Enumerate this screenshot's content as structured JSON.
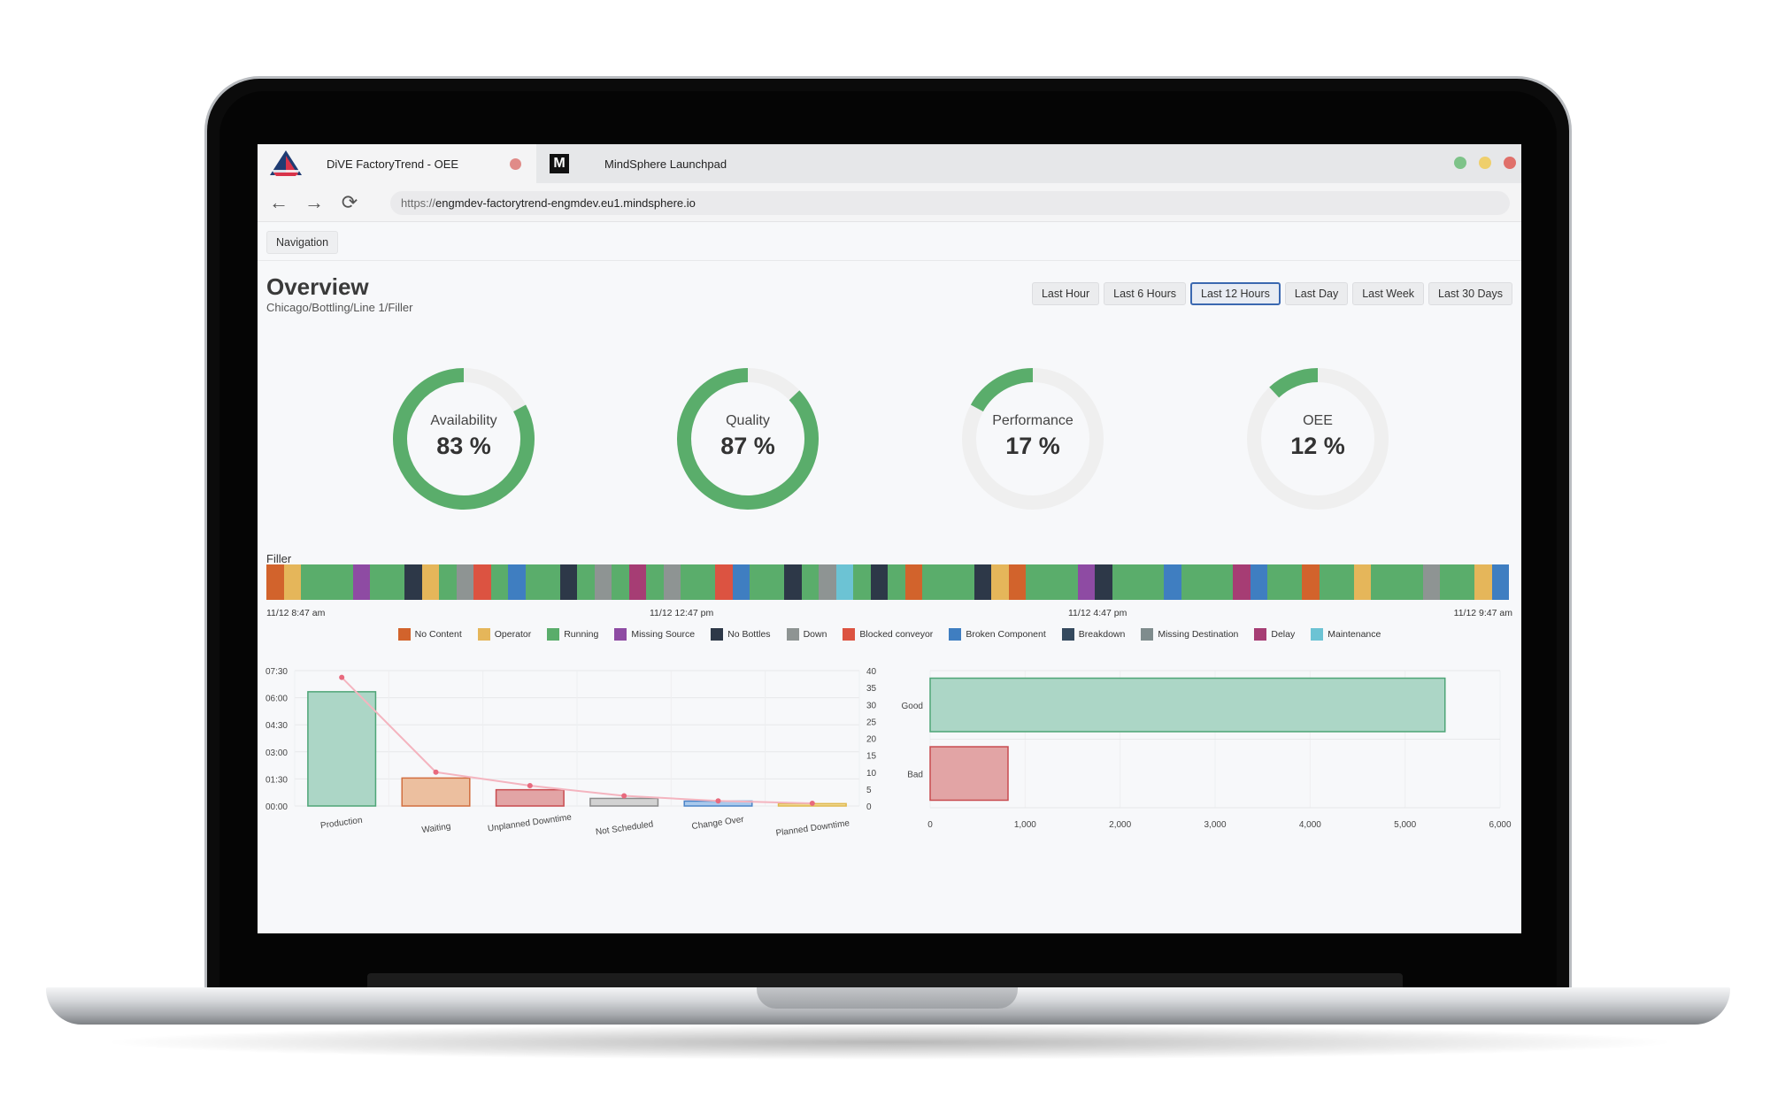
{
  "browser": {
    "tabs": [
      {
        "title": "DiVE FactoryTrend - OEE",
        "active": true
      },
      {
        "title": "MindSphere Launchpad",
        "active": false,
        "icon_text": "M"
      }
    ],
    "url_scheme": "https://",
    "url_host": "engmdev-factorytrend-engmdev.eu1.mindsphere.io"
  },
  "app": {
    "navigation_label": "Navigation",
    "title": "Overview",
    "subtitle": "Chicago/Bottling/Line 1/Filler",
    "ranges": [
      {
        "label": "Last Hour",
        "active": false
      },
      {
        "label": "Last 6 Hours",
        "active": false
      },
      {
        "label": "Last 12 Hours",
        "active": true
      },
      {
        "label": "Last Day",
        "active": false
      },
      {
        "label": "Last Week",
        "active": false
      },
      {
        "label": "Last 30 Days",
        "active": false
      }
    ]
  },
  "gauges": [
    {
      "label": "Availability",
      "value": "83 %",
      "fraction": 0.83
    },
    {
      "label": "Quality",
      "value": "87 %",
      "fraction": 0.87
    },
    {
      "label": "Performance",
      "value": "17 %",
      "fraction": 0.17
    },
    {
      "label": "OEE",
      "value": "12 %",
      "fraction": 0.12
    }
  ],
  "colors": {
    "gauge_fill": "#5aad6b",
    "gauge_track": "#efefef",
    "good_bar": "#acd6c6",
    "good_border": "#4ea577",
    "bad_bar": "#e2a4a5",
    "bad_border": "#c84b4f",
    "pareto_line": "#f4b4bf",
    "pareto_point": "#e86a7e"
  },
  "timeline": {
    "label": "Filler",
    "start_label": "11/12 8:47 am",
    "tick_labels": [
      "11/12 12:47 pm",
      "11/12 4:47 pm"
    ],
    "end_label": "11/12 9:47 am",
    "segments": [
      [
        "No Content",
        2
      ],
      [
        "Operator",
        2
      ],
      [
        "Running",
        6
      ],
      [
        "Missing Source",
        2
      ],
      [
        "Running",
        4
      ],
      [
        "No Bottles",
        2
      ],
      [
        "Operator",
        2
      ],
      [
        "Running",
        2
      ],
      [
        "Down",
        2
      ],
      [
        "Blocked conveyor",
        2
      ],
      [
        "Running",
        2
      ],
      [
        "Broken Component",
        2
      ],
      [
        "Running",
        4
      ],
      [
        "No Bottles",
        2
      ],
      [
        "Running",
        2
      ],
      [
        "Down",
        2
      ],
      [
        "Running",
        2
      ],
      [
        "Delay",
        2
      ],
      [
        "Running",
        2
      ],
      [
        "Down",
        2
      ],
      [
        "Running",
        4
      ],
      [
        "Blocked conveyor",
        2
      ],
      [
        "Broken Component",
        2
      ],
      [
        "Running",
        4
      ],
      [
        "No Bottles",
        2
      ],
      [
        "Running",
        2
      ],
      [
        "Down",
        2
      ],
      [
        "Maintenance",
        2
      ],
      [
        "Running",
        2
      ],
      [
        "No Bottles",
        2
      ],
      [
        "Running",
        2
      ],
      [
        "No Content",
        2
      ],
      [
        "Running",
        6
      ],
      [
        "No Bottles",
        2
      ],
      [
        "Operator",
        2
      ],
      [
        "No Content",
        2
      ],
      [
        "Running",
        6
      ],
      [
        "Missing Source",
        2
      ],
      [
        "No Bottles",
        2
      ],
      [
        "Running",
        6
      ],
      [
        "Broken Component",
        2
      ],
      [
        "Running",
        6
      ],
      [
        "Delay",
        2
      ],
      [
        "Broken Component",
        2
      ],
      [
        "Running",
        4
      ],
      [
        "No Content",
        2
      ],
      [
        "Running",
        4
      ],
      [
        "Operator",
        2
      ],
      [
        "Running",
        6
      ],
      [
        "Down",
        2
      ],
      [
        "Running",
        4
      ],
      [
        "Operator",
        2
      ],
      [
        "Broken Component",
        2
      ]
    ]
  },
  "legend": [
    {
      "name": "No Content",
      "color": "#d2632c"
    },
    {
      "name": "Operator",
      "color": "#e5b65a"
    },
    {
      "name": "Running",
      "color": "#5aad6b"
    },
    {
      "name": "Missing Source",
      "color": "#8e4ba3"
    },
    {
      "name": "No Bottles",
      "color": "#2d3848"
    },
    {
      "name": "Down",
      "color": "#8e9493"
    },
    {
      "name": "Blocked conveyor",
      "color": "#dc5341"
    },
    {
      "name": "Broken Component",
      "color": "#3f7ec1"
    },
    {
      "name": "Breakdown",
      "color": "#34495e"
    },
    {
      "name": "Missing Destination",
      "color": "#7f8c8d"
    },
    {
      "name": "Delay",
      "color": "#a63d74"
    },
    {
      "name": "Maintenance",
      "color": "#6cc3d4"
    }
  ],
  "chart_data": [
    {
      "type": "bar",
      "categories": [
        "Production",
        "Waiting",
        "Unplanned Downtime",
        "Not Scheduled",
        "Change Over",
        "Planned Downtime"
      ],
      "series": [
        {
          "values_hours": [
            6.33,
            1.55,
            0.9,
            0.42,
            0.27,
            0.13
          ],
          "kind": "bar"
        },
        {
          "values": [
            38,
            10,
            6,
            3,
            1.5,
            0.8
          ],
          "kind": "line",
          "axis": "right"
        }
      ],
      "bar_colors": [
        "#acd6c6",
        "#ecbf9f",
        "#e2a4a5",
        "#d2d2d2",
        "#a9c9ec",
        "#f1dc9a"
      ],
      "bar_borders": [
        "#4ea577",
        "#d26f3f",
        "#c84b4f",
        "#8b8b8b",
        "#4b84c8",
        "#e0b84d"
      ],
      "left_ticks": [
        "07:30",
        "06:00",
        "04:30",
        "03:00",
        "01:30",
        "00:00"
      ],
      "left_tick_values": [
        7.5,
        6,
        4.5,
        3,
        1.5,
        0
      ],
      "ylim_left": [
        0,
        7.5
      ],
      "right_ticks": [
        40,
        35,
        30,
        25,
        20,
        15,
        10,
        5,
        0
      ],
      "ylim_right": [
        0,
        40
      ],
      "grid": true
    },
    {
      "type": "bar",
      "orientation": "horizontal",
      "categories": [
        "Good",
        "Bad"
      ],
      "values": [
        5420,
        820
      ],
      "xticks": [
        "0",
        "1,000",
        "2,000",
        "3,000",
        "4,000",
        "5,000",
        "6,000"
      ],
      "xlim": [
        0,
        6000
      ],
      "grid": true
    }
  ]
}
